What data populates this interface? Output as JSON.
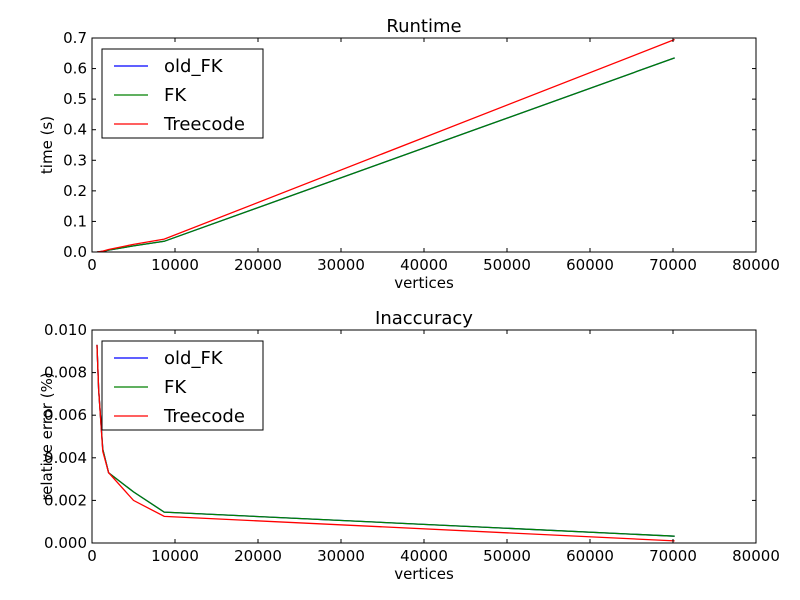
{
  "chart_data": [
    {
      "type": "line",
      "title": "Runtime",
      "xlabel": "vertices",
      "ylabel": "time (s)",
      "xlim": [
        0,
        80000
      ],
      "ylim": [
        0,
        0.7
      ],
      "xticks": [
        0,
        10000,
        20000,
        30000,
        40000,
        50000,
        60000,
        70000,
        80000
      ],
      "yticks": [
        0.0,
        0.1,
        0.2,
        0.3,
        0.4,
        0.5,
        0.6,
        0.7
      ],
      "ytick_labels": [
        "0.0",
        "0.1",
        "0.2",
        "0.3",
        "0.4",
        "0.5",
        "0.6",
        "0.7"
      ],
      "legend_position": "top-left",
      "grid": false,
      "series": [
        {
          "name": "old_FK",
          "color": "#0000ff",
          "x": [
            600,
            1300,
            2000,
            5000,
            8700,
            70200
          ],
          "y": [
            0.0,
            0.002,
            0.006,
            0.02,
            0.035,
            0.635
          ]
        },
        {
          "name": "FK",
          "color": "#008000",
          "x": [
            600,
            1300,
            2000,
            5000,
            8700,
            70200
          ],
          "y": [
            0.0,
            0.002,
            0.006,
            0.02,
            0.035,
            0.635
          ]
        },
        {
          "name": "Treecode",
          "color": "#ff0000",
          "x": [
            600,
            1300,
            2000,
            5000,
            8700,
            70200
          ],
          "y": [
            0.0,
            0.003,
            0.008,
            0.025,
            0.042,
            0.695
          ]
        }
      ]
    },
    {
      "type": "line",
      "title": "Inaccuracy",
      "xlabel": "vertices",
      "ylabel": "relative error (%)",
      "xlim": [
        0,
        80000
      ],
      "ylim": [
        0,
        0.01
      ],
      "xticks": [
        0,
        10000,
        20000,
        30000,
        40000,
        50000,
        60000,
        70000,
        80000
      ],
      "yticks": [
        0,
        0.002,
        0.004,
        0.006,
        0.008,
        0.01
      ],
      "ytick_labels": [
        "0.000",
        "0.002",
        "0.004",
        "0.006",
        "0.008",
        "0.010"
      ],
      "legend_position": "top-left",
      "grid": false,
      "series": [
        {
          "name": "old_FK",
          "color": "#0000ff",
          "x": [
            600,
            800,
            1300,
            2000,
            5000,
            8700,
            70200
          ],
          "y": [
            0.0093,
            0.0072,
            0.0044,
            0.0033,
            0.0024,
            0.00145,
            0.00032
          ]
        },
        {
          "name": "FK",
          "color": "#008000",
          "x": [
            600,
            800,
            1300,
            2000,
            5000,
            8700,
            70200
          ],
          "y": [
            0.0093,
            0.0072,
            0.0044,
            0.0033,
            0.0024,
            0.00145,
            0.00032
          ]
        },
        {
          "name": "Treecode",
          "color": "#ff0000",
          "x": [
            600,
            800,
            1300,
            2000,
            5000,
            8700,
            70200
          ],
          "y": [
            0.0093,
            0.0072,
            0.0043,
            0.0033,
            0.002,
            0.00125,
            0.0001
          ]
        }
      ]
    }
  ]
}
